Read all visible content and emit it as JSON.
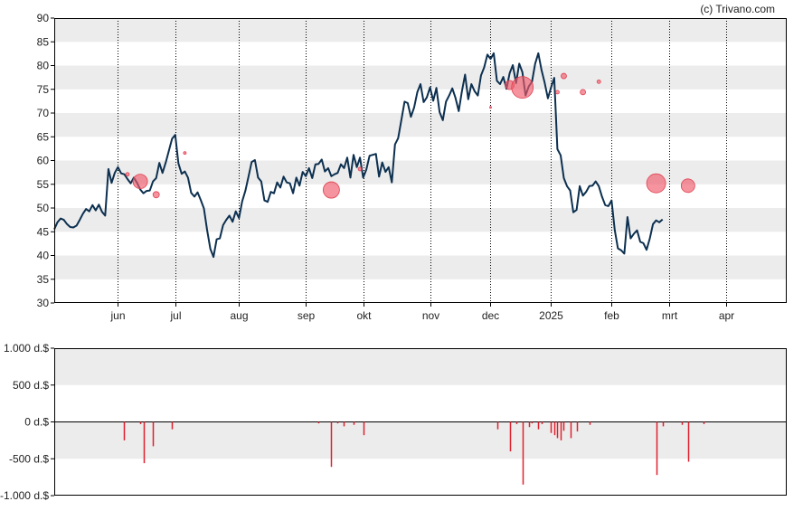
{
  "credit": "(c) Trivano.com",
  "colors": {
    "price_line": "#0d3050",
    "bubble": "#f05a6a",
    "volume_bar": "#e0202e",
    "band": "#ececec",
    "grid": "#000000"
  },
  "chart_data": [
    {
      "type": "line",
      "title": "",
      "xlabel": "",
      "ylabel": "",
      "ylim": [
        30,
        90
      ],
      "yticks": [
        30,
        35,
        40,
        45,
        50,
        55,
        60,
        65,
        70,
        75,
        80,
        85,
        90
      ],
      "xlim": [
        0,
        230
      ],
      "grid": "vertical dotted lines at month starts, horizontal alternating bands",
      "x_months": [
        {
          "label": "jun",
          "x": 20
        },
        {
          "label": "jul",
          "x": 38
        },
        {
          "label": "aug",
          "x": 58
        },
        {
          "label": "sep",
          "x": 79
        },
        {
          "label": "okt",
          "x": 97
        },
        {
          "label": "nov",
          "x": 118
        },
        {
          "label": "dec",
          "x": 137
        },
        {
          "label": "2025",
          "x": 156
        },
        {
          "label": "feb",
          "x": 175
        },
        {
          "label": "mrt",
          "x": 193
        },
        {
          "label": "apr",
          "x": 211
        }
      ],
      "series": [
        {
          "values": [
            [
              0,
              45.5
            ],
            [
              1,
              47
            ],
            [
              2,
              47.8
            ],
            [
              3,
              47.5
            ],
            [
              4,
              46.6
            ],
            [
              5,
              46
            ],
            [
              6,
              45.9
            ],
            [
              7,
              46.3
            ],
            [
              8,
              47.5
            ],
            [
              9,
              48.8
            ],
            [
              10,
              49.8
            ],
            [
              11,
              49.3
            ],
            [
              12,
              50.6
            ],
            [
              13,
              49.5
            ],
            [
              14,
              50.7
            ],
            [
              15,
              49.2
            ],
            [
              16,
              48.4
            ],
            [
              17,
              58.2
            ],
            [
              18,
              55.3
            ],
            [
              19,
              57.4
            ],
            [
              20,
              58.6
            ],
            [
              21,
              57.3
            ],
            [
              22,
              57.1
            ],
            [
              23,
              56.1
            ],
            [
              24,
              55.2
            ],
            [
              25,
              56.4
            ],
            [
              26,
              55.3
            ],
            [
              27,
              53.9
            ],
            [
              28,
              53.1
            ],
            [
              29,
              53.6
            ],
            [
              30,
              53.7
            ],
            [
              31,
              55.6
            ],
            [
              32,
              56.3
            ],
            [
              33,
              59.5
            ],
            [
              34,
              57.4
            ],
            [
              35,
              59.6
            ],
            [
              36,
              62.1
            ],
            [
              37,
              64.6
            ],
            [
              38,
              65.4
            ],
            [
              39,
              59.4
            ],
            [
              40,
              57.2
            ],
            [
              41,
              57.7
            ],
            [
              42,
              56.4
            ],
            [
              43,
              53.2
            ],
            [
              44,
              52.4
            ],
            [
              45,
              53.3
            ],
            [
              46,
              51.7
            ],
            [
              47,
              49.9
            ],
            [
              48,
              45.4
            ],
            [
              49,
              41.4
            ],
            [
              50,
              39.7
            ],
            [
              51,
              43.4
            ],
            [
              52,
              43.6
            ],
            [
              53,
              46.4
            ],
            [
              54,
              47.5
            ],
            [
              55,
              48.4
            ],
            [
              56,
              47.1
            ],
            [
              57,
              49.3
            ],
            [
              58,
              47.9
            ],
            [
              59,
              51.4
            ],
            [
              60,
              53.6
            ],
            [
              61,
              56.6
            ],
            [
              62,
              59.7
            ],
            [
              63,
              60.1
            ],
            [
              64,
              56.4
            ],
            [
              65,
              55.6
            ],
            [
              66,
              51.6
            ],
            [
              67,
              51.3
            ],
            [
              68,
              53.4
            ],
            [
              69,
              53.1
            ],
            [
              70,
              55.4
            ],
            [
              71,
              54.3
            ],
            [
              72,
              56.6
            ],
            [
              73,
              55.4
            ],
            [
              74,
              55.2
            ],
            [
              75,
              53.1
            ],
            [
              76,
              56.4
            ],
            [
              77,
              54.7
            ],
            [
              78,
              57.6
            ],
            [
              79,
              56.7
            ],
            [
              80,
              58.4
            ],
            [
              81,
              56.3
            ],
            [
              82,
              59.2
            ],
            [
              83,
              59.3
            ],
            [
              84,
              60.2
            ],
            [
              85,
              57.7
            ],
            [
              86,
              58.4
            ],
            [
              87,
              56.7
            ],
            [
              88,
              57.1
            ],
            [
              89,
              57.4
            ],
            [
              90,
              59.2
            ],
            [
              91,
              58.4
            ],
            [
              92,
              60.6
            ],
            [
              93,
              56.4
            ],
            [
              94,
              61.2
            ],
            [
              95,
              58.6
            ],
            [
              96,
              60.6
            ],
            [
              97,
              56.4
            ],
            [
              98,
              58.1
            ],
            [
              99,
              61
            ],
            [
              100,
              61.2
            ],
            [
              101,
              61.4
            ],
            [
              102,
              56.6
            ],
            [
              103,
              59.6
            ],
            [
              104,
              57.6
            ],
            [
              105,
              58.6
            ],
            [
              106,
              55.4
            ],
            [
              107,
              63.4
            ],
            [
              108,
              64.7
            ],
            [
              109,
              68.6
            ],
            [
              110,
              72.4
            ],
            [
              111,
              72.1
            ],
            [
              112,
              69.2
            ],
            [
              113,
              71.2
            ],
            [
              114,
              74.4
            ],
            [
              115,
              76.1
            ],
            [
              116,
              72.3
            ],
            [
              117,
              73.3
            ],
            [
              118,
              75.4
            ],
            [
              119,
              72.6
            ],
            [
              120,
              75.3
            ],
            [
              121,
              70.2
            ],
            [
              122,
              68.5
            ],
            [
              123,
              72.4
            ],
            [
              124,
              73.7
            ],
            [
              125,
              75.2
            ],
            [
              126,
              73.2
            ],
            [
              127,
              70.4
            ],
            [
              128,
              74.6
            ],
            [
              129,
              78.1
            ],
            [
              130,
              72.9
            ],
            [
              131,
              76.1
            ],
            [
              132,
              74.6
            ],
            [
              133,
              73.7
            ],
            [
              134,
              77.9
            ],
            [
              135,
              79.6
            ],
            [
              136,
              82.3
            ],
            [
              137,
              81.4
            ],
            [
              138,
              82.6
            ],
            [
              139,
              76.8
            ],
            [
              140,
              76.1
            ],
            [
              141,
              77.6
            ],
            [
              142,
              75.1
            ],
            [
              143,
              78.4
            ],
            [
              144,
              80.1
            ],
            [
              145,
              76.3
            ],
            [
              146,
              80.4
            ],
            [
              147,
              78.6
            ],
            [
              148,
              73.7
            ],
            [
              149,
              75.6
            ],
            [
              150,
              76.6
            ],
            [
              151,
              80.4
            ],
            [
              152,
              82.6
            ],
            [
              153,
              79.1
            ],
            [
              154,
              76.4
            ],
            [
              155,
              73.1
            ],
            [
              156,
              75.4
            ],
            [
              157,
              77.4
            ],
            [
              158,
              62.4
            ],
            [
              159,
              61.1
            ],
            [
              160,
              56.3
            ],
            [
              161,
              54.6
            ],
            [
              162,
              53.7
            ],
            [
              163,
              49.1
            ],
            [
              164,
              49.6
            ],
            [
              165,
              54.6
            ],
            [
              166,
              52.6
            ],
            [
              167,
              53.4
            ],
            [
              168,
              54.6
            ],
            [
              169,
              54.7
            ],
            [
              170,
              55.6
            ],
            [
              171,
              54.6
            ],
            [
              172,
              52.4
            ],
            [
              173,
              50.6
            ],
            [
              174,
              50.4
            ],
            [
              175,
              51.6
            ],
            [
              176,
              45.4
            ],
            [
              177,
              41.5
            ],
            [
              178,
              41.1
            ],
            [
              179,
              40.4
            ],
            [
              180,
              48.1
            ],
            [
              181,
              43.6
            ],
            [
              182,
              44.6
            ],
            [
              183,
              45.3
            ],
            [
              184,
              42.9
            ],
            [
              185,
              42.6
            ],
            [
              186,
              41.2
            ],
            [
              187,
              43.6
            ],
            [
              188,
              46.6
            ],
            [
              189,
              47.4
            ],
            [
              190,
              47
            ],
            [
              191,
              47.6
            ]
          ]
        }
      ],
      "bubbles": [
        {
          "x": 23,
          "y": 57.1,
          "r": 2
        },
        {
          "x": 27,
          "y": 55.6,
          "r": 8
        },
        {
          "x": 32,
          "y": 52.8,
          "r": 3.5
        },
        {
          "x": 41,
          "y": 61.6,
          "r": 1.5
        },
        {
          "x": 87,
          "y": 53.8,
          "r": 9
        },
        {
          "x": 96,
          "y": 58.2,
          "r": 2
        },
        {
          "x": 137,
          "y": 71.2,
          "r": 1
        },
        {
          "x": 143,
          "y": 75.9,
          "r": 5
        },
        {
          "x": 147,
          "y": 75.4,
          "r": 12
        },
        {
          "x": 158,
          "y": 74.4,
          "r": 2
        },
        {
          "x": 160,
          "y": 77.8,
          "r": 3
        },
        {
          "x": 166,
          "y": 74.4,
          "r": 3
        },
        {
          "x": 171,
          "y": 76.6,
          "r": 2
        },
        {
          "x": 189,
          "y": 55.2,
          "r": 10.5
        },
        {
          "x": 199,
          "y": 54.7,
          "r": 7.5
        }
      ]
    },
    {
      "type": "bar",
      "title": "",
      "xlabel": "",
      "ylabel": "",
      "ylim": [
        -1000,
        1000
      ],
      "yticks": [
        {
          "value": 1000,
          "label": "1.000 d.$"
        },
        {
          "value": 500,
          "label": "500 d.$"
        },
        {
          "value": 0,
          "label": "0 d.$"
        },
        {
          "value": -500,
          "label": "-500 d.$"
        },
        {
          "value": -1000,
          "label": "-1.000 d.$"
        }
      ],
      "series": [
        {
          "values": [
            [
              22,
              -250
            ],
            [
              27,
              -30
            ],
            [
              28,
              -560
            ],
            [
              31,
              -330
            ],
            [
              37,
              -100
            ],
            [
              83,
              -20
            ],
            [
              87,
              -610
            ],
            [
              89,
              -20
            ],
            [
              91,
              -60
            ],
            [
              94,
              -40
            ],
            [
              97,
              -180
            ],
            [
              139,
              -100
            ],
            [
              143,
              -400
            ],
            [
              145,
              -30
            ],
            [
              147,
              -850
            ],
            [
              149,
              -70
            ],
            [
              150,
              -20
            ],
            [
              152,
              -100
            ],
            [
              153,
              -30
            ],
            [
              156,
              -150
            ],
            [
              157,
              -180
            ],
            [
              158,
              -220
            ],
            [
              159,
              -250
            ],
            [
              160,
              -120
            ],
            [
              162,
              -220
            ],
            [
              164,
              -130
            ],
            [
              168,
              -40
            ],
            [
              189,
              -720
            ],
            [
              191,
              -60
            ],
            [
              197,
              -40
            ],
            [
              199,
              -540
            ],
            [
              204,
              -30
            ]
          ]
        }
      ]
    }
  ]
}
